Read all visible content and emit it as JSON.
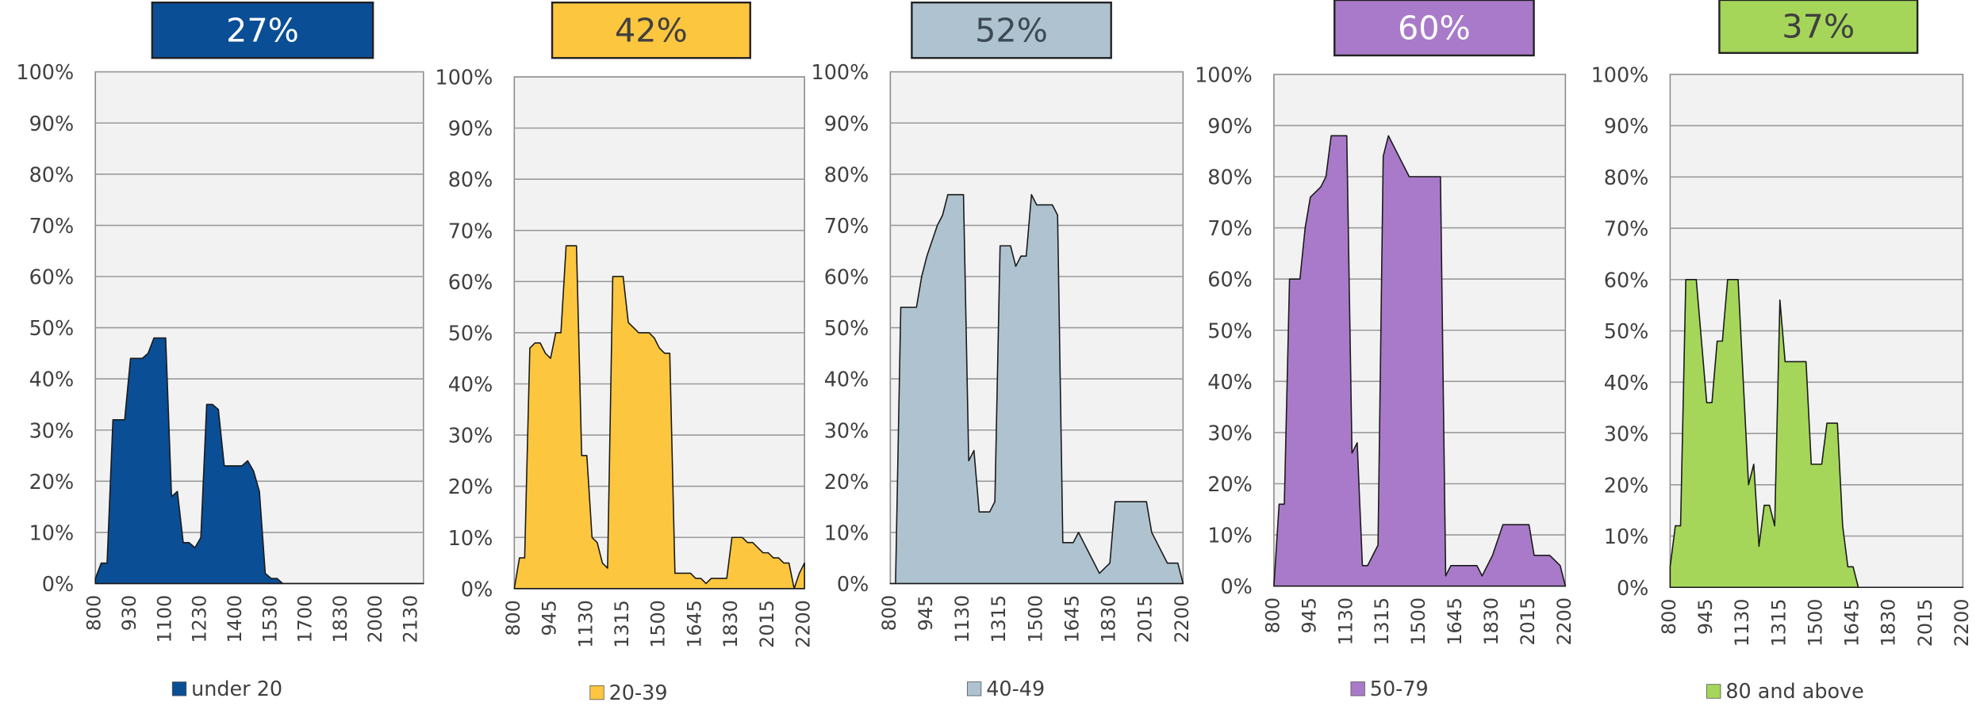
{
  "chart_data": [
    {
      "type": "area",
      "summary": {
        "value": 27,
        "label": "27%"
      },
      "categories": [
        "800",
        null,
        null,
        null,
        null,
        null,
        "930",
        null,
        null,
        null,
        null,
        null,
        "1100",
        null,
        null,
        null,
        null,
        null,
        "1230",
        null,
        null,
        null,
        null,
        null,
        "1400",
        null,
        null,
        null,
        null,
        null,
        "1530",
        null,
        null,
        null,
        null,
        null,
        "1700",
        null,
        null,
        null,
        null,
        null,
        "1830",
        null,
        null,
        null,
        null,
        null,
        "2000",
        null,
        null,
        null,
        null,
        null,
        "2130",
        null,
        null
      ],
      "series": [
        {
          "name": "under 20",
          "color": "#0a4e96",
          "values": [
            1,
            4,
            4,
            32,
            32,
            32,
            44,
            44,
            44,
            45,
            48,
            48,
            48,
            17,
            18,
            8,
            8,
            7,
            9,
            35,
            35,
            34,
            23,
            23,
            23,
            23,
            24,
            22,
            18,
            2,
            1,
            1,
            0,
            0,
            0,
            0,
            0,
            0,
            0,
            0,
            0,
            0,
            0,
            0,
            0,
            0,
            0,
            0,
            0,
            0,
            0,
            0,
            0,
            0,
            0,
            0,
            0
          ]
        }
      ],
      "ylim": [
        0,
        100
      ],
      "yticks": [
        {
          "value": 0,
          "label": "0%"
        },
        {
          "value": 10,
          "label": "10%"
        },
        {
          "value": 20,
          "label": "20%"
        },
        {
          "value": 30,
          "label": "30%"
        },
        {
          "value": 40,
          "label": "40%"
        },
        {
          "value": 50,
          "label": "50%"
        },
        {
          "value": 60,
          "label": "60%"
        },
        {
          "value": 70,
          "label": "70%"
        },
        {
          "value": 80,
          "label": "80%"
        },
        {
          "value": 90,
          "label": "90%"
        },
        {
          "value": 100,
          "label": "100%"
        }
      ],
      "grid": true
    },
    {
      "type": "area",
      "summary": {
        "value": 42,
        "label": "42%"
      },
      "categories": [
        "800",
        null,
        null,
        null,
        null,
        null,
        null,
        "945",
        null,
        null,
        null,
        null,
        null,
        null,
        "1130",
        null,
        null,
        null,
        null,
        null,
        null,
        "1315",
        null,
        null,
        null,
        null,
        null,
        null,
        "1500",
        null,
        null,
        null,
        null,
        null,
        null,
        "1645",
        null,
        null,
        null,
        null,
        null,
        null,
        "1830",
        null,
        null,
        null,
        null,
        null,
        null,
        "2015",
        null,
        null,
        null,
        null,
        null,
        null,
        "2200"
      ],
      "series": [
        {
          "name": "20-39",
          "color": "#fcc63f",
          "values": [
            0,
            6,
            6,
            47,
            48,
            48,
            46,
            45,
            50,
            50,
            67,
            67,
            67,
            26,
            26,
            10,
            9,
            5,
            4,
            61,
            61,
            61,
            52,
            51,
            50,
            50,
            50,
            49,
            47,
            46,
            46,
            3,
            3,
            3,
            3,
            2,
            2,
            1,
            2,
            2,
            2,
            2,
            10,
            10,
            10,
            9,
            9,
            8,
            7,
            7,
            6,
            6,
            5,
            5,
            0,
            3,
            5
          ]
        }
      ],
      "ylim": [
        0,
        100
      ],
      "yticks": [
        {
          "value": 0,
          "label": "0%"
        },
        {
          "value": 10,
          "label": "10%"
        },
        {
          "value": 20,
          "label": "20%"
        },
        {
          "value": 30,
          "label": "30%"
        },
        {
          "value": 40,
          "label": "40%"
        },
        {
          "value": 50,
          "label": "50%"
        },
        {
          "value": 60,
          "label": "60%"
        },
        {
          "value": 70,
          "label": "70%"
        },
        {
          "value": 80,
          "label": "80%"
        },
        {
          "value": 90,
          "label": "90%"
        },
        {
          "value": 100,
          "label": "100%"
        }
      ],
      "grid": true
    },
    {
      "type": "area",
      "summary": {
        "value": 52,
        "label": "52%"
      },
      "categories": [
        "800",
        null,
        null,
        null,
        null,
        null,
        null,
        "945",
        null,
        null,
        null,
        null,
        null,
        null,
        "1130",
        null,
        null,
        null,
        null,
        null,
        null,
        "1315",
        null,
        null,
        null,
        null,
        null,
        null,
        "1500",
        null,
        null,
        null,
        null,
        null,
        null,
        "1645",
        null,
        null,
        null,
        null,
        null,
        null,
        "1830",
        null,
        null,
        null,
        null,
        null,
        null,
        "2015",
        null,
        null,
        null,
        null,
        null,
        null,
        "2200"
      ],
      "series": [
        {
          "name": "40-49",
          "color": "#aec3cf",
          "values": [
            0,
            0,
            54,
            54,
            54,
            54,
            60,
            64,
            67,
            70,
            72,
            76,
            76,
            76,
            76,
            24,
            26,
            14,
            14,
            14,
            16,
            66,
            66,
            66,
            62,
            64,
            64,
            76,
            74,
            74,
            74,
            74,
            72,
            8,
            8,
            8,
            10,
            8,
            6,
            4,
            2,
            3,
            4,
            16,
            16,
            16,
            16,
            16,
            16,
            16,
            10,
            8,
            6,
            4,
            4,
            4,
            0
          ]
        }
      ],
      "ylim": [
        0,
        100
      ],
      "yticks": [
        {
          "value": 0,
          "label": "0%"
        },
        {
          "value": 10,
          "label": "10%"
        },
        {
          "value": 20,
          "label": "20%"
        },
        {
          "value": 30,
          "label": "30%"
        },
        {
          "value": 40,
          "label": "40%"
        },
        {
          "value": 50,
          "label": "50%"
        },
        {
          "value": 60,
          "label": "60%"
        },
        {
          "value": 70,
          "label": "70%"
        },
        {
          "value": 80,
          "label": "80%"
        },
        {
          "value": 90,
          "label": "90%"
        },
        {
          "value": 100,
          "label": "100%"
        }
      ],
      "grid": true
    },
    {
      "type": "area",
      "summary": {
        "value": 60,
        "label": "60%"
      },
      "categories": [
        "800",
        null,
        null,
        null,
        null,
        null,
        null,
        "945",
        null,
        null,
        null,
        null,
        null,
        null,
        "1130",
        null,
        null,
        null,
        null,
        null,
        null,
        "1315",
        null,
        null,
        null,
        null,
        null,
        null,
        "1500",
        null,
        null,
        null,
        null,
        null,
        null,
        "1645",
        null,
        null,
        null,
        null,
        null,
        null,
        "1830",
        null,
        null,
        null,
        null,
        null,
        null,
        "2015",
        null,
        null,
        null,
        null,
        null,
        null,
        "2200"
      ],
      "series": [
        {
          "name": "50-79",
          "color": "#a97ac9",
          "values": [
            0,
            16,
            16,
            60,
            60,
            60,
            70,
            76,
            77,
            78,
            80,
            88,
            88,
            88,
            88,
            26,
            28,
            4,
            4,
            6,
            8,
            84,
            88,
            86,
            84,
            82,
            80,
            80,
            80,
            80,
            80,
            80,
            80,
            2,
            4,
            4,
            4,
            4,
            4,
            4,
            2,
            4,
            6,
            9,
            12,
            12,
            12,
            12,
            12,
            12,
            6,
            6,
            6,
            6,
            5,
            4,
            0
          ]
        }
      ],
      "ylim": [
        0,
        100
      ],
      "yticks": [
        {
          "value": 0,
          "label": "0%"
        },
        {
          "value": 10,
          "label": "10%"
        },
        {
          "value": 20,
          "label": "20%"
        },
        {
          "value": 30,
          "label": "30%"
        },
        {
          "value": 40,
          "label": "40%"
        },
        {
          "value": 50,
          "label": "50%"
        },
        {
          "value": 60,
          "label": "60%"
        },
        {
          "value": 70,
          "label": "70%"
        },
        {
          "value": 80,
          "label": "80%"
        },
        {
          "value": 90,
          "label": "90%"
        },
        {
          "value": 100,
          "label": "100%"
        }
      ],
      "grid": true
    },
    {
      "type": "area",
      "summary": {
        "value": 37,
        "label": "37%"
      },
      "categories": [
        "800",
        null,
        null,
        null,
        null,
        null,
        null,
        "945",
        null,
        null,
        null,
        null,
        null,
        null,
        "1130",
        null,
        null,
        null,
        null,
        null,
        null,
        "1315",
        null,
        null,
        null,
        null,
        null,
        null,
        "1500",
        null,
        null,
        null,
        null,
        null,
        null,
        "1645",
        null,
        null,
        null,
        null,
        null,
        null,
        "1830",
        null,
        null,
        null,
        null,
        null,
        null,
        "2015",
        null,
        null,
        null,
        null,
        null,
        null,
        "2200"
      ],
      "series": [
        {
          "name": "80 and above",
          "color": "#a5d65a",
          "values": [
            4,
            12,
            12,
            60,
            60,
            60,
            48,
            36,
            36,
            48,
            48,
            60,
            60,
            60,
            40,
            20,
            24,
            8,
            16,
            16,
            12,
            56,
            44,
            44,
            44,
            44,
            44,
            24,
            24,
            24,
            32,
            32,
            32,
            12,
            4,
            4,
            0,
            0,
            0,
            0,
            0,
            0,
            0,
            0,
            0,
            0,
            0,
            0,
            0,
            0,
            0,
            0,
            0,
            0,
            0,
            0,
            0
          ]
        }
      ],
      "ylim": [
        0,
        100
      ],
      "yticks": [
        {
          "value": 0,
          "label": "0%"
        },
        {
          "value": 10,
          "label": "10%"
        },
        {
          "value": 20,
          "label": "20%"
        },
        {
          "value": 30,
          "label": "30%"
        },
        {
          "value": 40,
          "label": "40%"
        },
        {
          "value": 50,
          "label": "50%"
        },
        {
          "value": 60,
          "label": "60%"
        },
        {
          "value": 70,
          "label": "70%"
        },
        {
          "value": 80,
          "label": "80%"
        },
        {
          "value": 90,
          "label": "90%"
        },
        {
          "value": 100,
          "label": "100%"
        }
      ],
      "grid": true
    }
  ]
}
